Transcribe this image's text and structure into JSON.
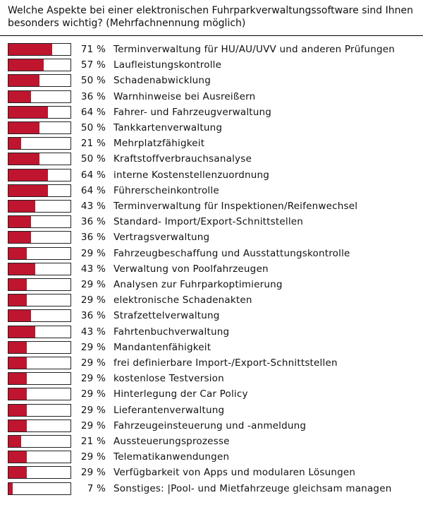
{
  "chart_data": {
    "type": "bar",
    "orientation": "horizontal",
    "title": "Welche Aspekte bei einer elektronischen Fuhrparkverwaltungssoftware sind Ihnen besonders wichtig? (Mehrfachnennung möglich)",
    "xlim": [
      0,
      100
    ],
    "unit": "%",
    "bar_color": "#c0152f",
    "grid": false,
    "categories": [
      "Terminverwaltung für HU/AU/UVV und anderen Prüfungen",
      "Laufleistungskontrolle",
      "Schadenabwicklung",
      "Warnhinweise bei Ausreißern",
      "Fahrer- und Fahrzeugverwaltung",
      "Tankkartenverwaltung",
      "Mehrplatzfähigkeit",
      "Kraftstoffverbrauchsanalyse",
      "interne Kostenstellenzuordnung",
      "Führerscheinkontrolle",
      "Terminverwaltung für Inspektionen/Reifenwechsel",
      "Standard- Import/Export-Schnittstellen",
      "Vertragsverwaltung",
      "Fahrzeugbeschaffung und Ausstattungskontrolle",
      "Verwaltung von Poolfahrzeugen",
      "Analysen zur Fuhrparkoptimierung",
      "elektronische Schadenakten",
      "Strafzettelverwaltung",
      "Fahrtenbuchverwaltung",
      "Mandantenfähigkeit",
      "frei definierbare Import-/Export-Schnittstellen",
      "kostenlose Testversion",
      "Hinterlegung der Car Policy",
      "Lieferantenverwaltung",
      "Fahrzeugeinsteuerung und -anmeldung",
      "Aussteuerungsprozesse",
      "Telematikanwendungen",
      "Verfügbarkeit von Apps und modularen Lösungen",
      "Sonstiges: |Pool- und Mietfahrzeuge gleichsam managen"
    ],
    "values": [
      71,
      57,
      50,
      36,
      64,
      50,
      21,
      50,
      64,
      64,
      43,
      36,
      36,
      29,
      43,
      29,
      29,
      36,
      43,
      29,
      29,
      29,
      29,
      29,
      29,
      21,
      29,
      29,
      7
    ],
    "value_labels": [
      "71 %",
      "57 %",
      "50 %",
      "36 %",
      "64 %",
      "50 %",
      "21 %",
      "50 %",
      "64 %",
      "64 %",
      "43 %",
      "36 %",
      "36 %",
      "29 %",
      "43 %",
      "29 %",
      "29 %",
      "36 %",
      "43 %",
      "29 %",
      "29 %",
      "29 %",
      "29 %",
      "29 %",
      "29 %",
      "21 %",
      "29 %",
      "29 %",
      "7 %"
    ]
  }
}
